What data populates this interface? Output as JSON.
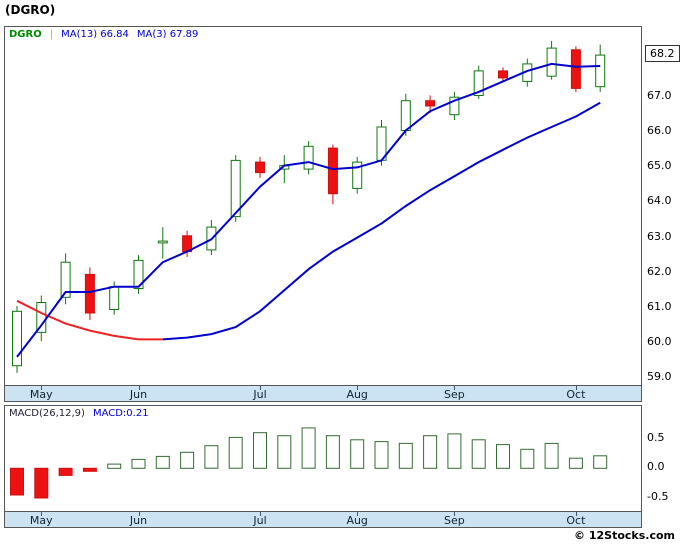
{
  "window": {
    "title": "(DGRO)"
  },
  "footer": {
    "copyright": "© 12Stocks.com"
  },
  "colors": {
    "up_fill": "#ffffff",
    "up_border": "#117711",
    "down_fill": "#ee1111",
    "down_border": "#cc1111",
    "ma_blue": "#0000cc",
    "ma_red": "#ee2222",
    "macd_pos_fill": "#ffffff",
    "macd_pos_border": "#336b33",
    "macd_neg_fill": "#ee1111",
    "macd_neg_border": "#cc1111",
    "axis_strip_bg": "#cbe3f2",
    "legend_symbol": "#008800",
    "legend_ma": "#0000cc"
  },
  "price_chart": {
    "legend": {
      "symbol": "DGRO",
      "separator": "|",
      "ma13": "MA(13) 66.84",
      "ma3": "MA(3) 67.89"
    },
    "last_price": "68.2",
    "y_ticks": [
      "67.0",
      "66.0",
      "65.0",
      "64.0",
      "63.0",
      "62.0",
      "61.0",
      "60.0",
      "59.0"
    ],
    "x_ticks": [
      "May",
      "Jun",
      "Jul",
      "Aug",
      "Sep",
      "Oct"
    ]
  },
  "macd_chart": {
    "legend": {
      "name": "MACD(26,12,9)",
      "value": "MACD:0.21"
    },
    "y_ticks": [
      "0.5",
      "0.0",
      "-0.5"
    ],
    "x_ticks": [
      "May",
      "Jun",
      "Jul",
      "Aug",
      "Sep",
      "Oct"
    ]
  },
  "chart_data": [
    {
      "type": "candlestick",
      "title": "DGRO weekly price",
      "ylim": [
        58.8,
        69.0
      ],
      "months": [
        {
          "label": "May",
          "index": 1
        },
        {
          "label": "Jun",
          "index": 5
        },
        {
          "label": "Jul",
          "index": 10
        },
        {
          "label": "Aug",
          "index": 14
        },
        {
          "label": "Sep",
          "index": 18
        },
        {
          "label": "Oct",
          "index": 23
        }
      ],
      "candles": [
        {
          "o": 59.35,
          "h": 61.05,
          "l": 59.15,
          "c": 60.9
        },
        {
          "o": 60.3,
          "h": 61.35,
          "l": 60.05,
          "c": 61.15
        },
        {
          "o": 61.3,
          "h": 62.55,
          "l": 61.1,
          "c": 62.3
        },
        {
          "o": 61.95,
          "h": 62.15,
          "l": 60.65,
          "c": 60.85
        },
        {
          "o": 60.95,
          "h": 61.75,
          "l": 60.8,
          "c": 61.6
        },
        {
          "o": 61.55,
          "h": 62.5,
          "l": 61.4,
          "c": 62.35
        },
        {
          "o": 62.85,
          "h": 63.3,
          "l": 62.4,
          "c": 62.9
        },
        {
          "o": 63.05,
          "h": 63.2,
          "l": 62.45,
          "c": 62.6
        },
        {
          "o": 62.65,
          "h": 63.5,
          "l": 62.5,
          "c": 63.3
        },
        {
          "o": 63.6,
          "h": 65.35,
          "l": 63.45,
          "c": 65.2
        },
        {
          "o": 65.15,
          "h": 65.3,
          "l": 64.7,
          "c": 64.85
        },
        {
          "o": 64.95,
          "h": 65.35,
          "l": 64.55,
          "c": 65.05
        },
        {
          "o": 64.95,
          "h": 65.75,
          "l": 64.8,
          "c": 65.6
        },
        {
          "o": 65.55,
          "h": 65.65,
          "l": 63.95,
          "c": 64.25
        },
        {
          "o": 64.4,
          "h": 65.3,
          "l": 64.25,
          "c": 65.15
        },
        {
          "o": 65.2,
          "h": 66.35,
          "l": 65.05,
          "c": 66.15
        },
        {
          "o": 66.05,
          "h": 67.1,
          "l": 65.9,
          "c": 66.9
        },
        {
          "o": 66.9,
          "h": 67.05,
          "l": 66.55,
          "c": 66.75
        },
        {
          "o": 66.5,
          "h": 67.15,
          "l": 66.35,
          "c": 67.0
        },
        {
          "o": 67.05,
          "h": 67.9,
          "l": 66.95,
          "c": 67.75
        },
        {
          "o": 67.75,
          "h": 67.85,
          "l": 67.45,
          "c": 67.55
        },
        {
          "o": 67.45,
          "h": 68.1,
          "l": 67.3,
          "c": 67.95
        },
        {
          "o": 67.6,
          "h": 68.6,
          "l": 67.5,
          "c": 68.4
        },
        {
          "o": 68.35,
          "h": 68.45,
          "l": 67.15,
          "c": 67.25
        },
        {
          "o": 67.3,
          "h": 68.5,
          "l": 67.15,
          "c": 68.2
        }
      ],
      "series": [
        {
          "name": "MA(13)",
          "last": 66.84,
          "red_until_index": 6,
          "values": [
            61.2,
            60.85,
            60.55,
            60.35,
            60.2,
            60.1,
            60.1,
            60.15,
            60.25,
            60.45,
            60.9,
            61.5,
            62.1,
            62.6,
            63.0,
            63.4,
            63.9,
            64.35,
            64.75,
            65.15,
            65.5,
            65.85,
            66.15,
            66.45,
            66.84
          ]
        },
        {
          "name": "MA(3)",
          "last": 67.89,
          "values": [
            59.6,
            60.5,
            61.45,
            61.45,
            61.6,
            61.6,
            62.3,
            62.6,
            62.95,
            63.7,
            64.45,
            65.05,
            65.15,
            64.95,
            65.0,
            65.2,
            66.05,
            66.6,
            66.9,
            67.15,
            67.45,
            67.75,
            67.95,
            67.87,
            67.89
          ]
        }
      ],
      "last_price": 68.2
    },
    {
      "type": "bar",
      "title": "MACD(26,12,9)",
      "ylim": [
        -0.72,
        1.05
      ],
      "y_ticks": [
        0.5,
        0.0,
        -0.5
      ],
      "values": [
        -0.45,
        -0.5,
        -0.12,
        -0.05,
        0.07,
        0.15,
        0.2,
        0.27,
        0.38,
        0.52,
        0.6,
        0.55,
        0.68,
        0.55,
        0.48,
        0.45,
        0.42,
        0.55,
        0.58,
        0.48,
        0.4,
        0.32,
        0.42,
        0.17,
        0.21
      ],
      "last_value": 0.21
    }
  ]
}
